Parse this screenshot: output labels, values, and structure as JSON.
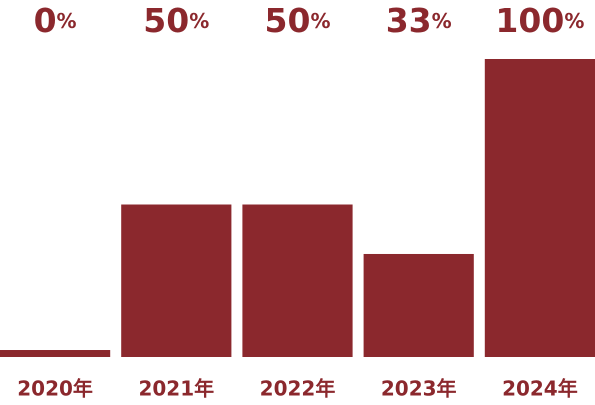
{
  "chart_data": {
    "type": "bar",
    "categories": [
      "2020年",
      "2021年",
      "2022年",
      "2023年",
      "2024年"
    ],
    "values": [
      0,
      50,
      50,
      33,
      100
    ],
    "value_labels": [
      "0%",
      "50%",
      "50%",
      "33%",
      "100%"
    ],
    "color": "#8b282d",
    "ylim": [
      -2.4,
      100
    ]
  }
}
